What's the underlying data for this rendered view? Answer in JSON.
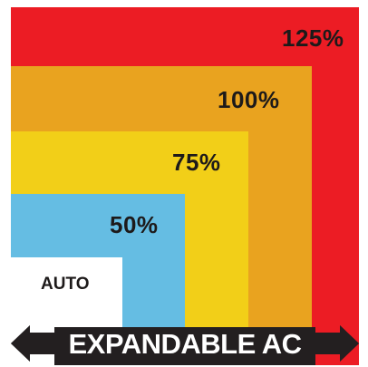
{
  "levels": [
    {
      "id": "125",
      "label": "125%",
      "color": "#ec1c24"
    },
    {
      "id": "100",
      "label": "100%",
      "color": "#e9a31f"
    },
    {
      "id": "75",
      "label": "75%",
      "color": "#f2cf18"
    },
    {
      "id": "50",
      "label": "50%",
      "color": "#65bde3"
    },
    {
      "id": "auto",
      "label": "AUTO",
      "color": "#ffffff"
    }
  ],
  "banner": {
    "label": "EXPANDABLE AC",
    "color": "#231f20",
    "arrow_icon_left": "arrow-left-icon",
    "arrow_icon_right": "arrow-right-icon"
  }
}
